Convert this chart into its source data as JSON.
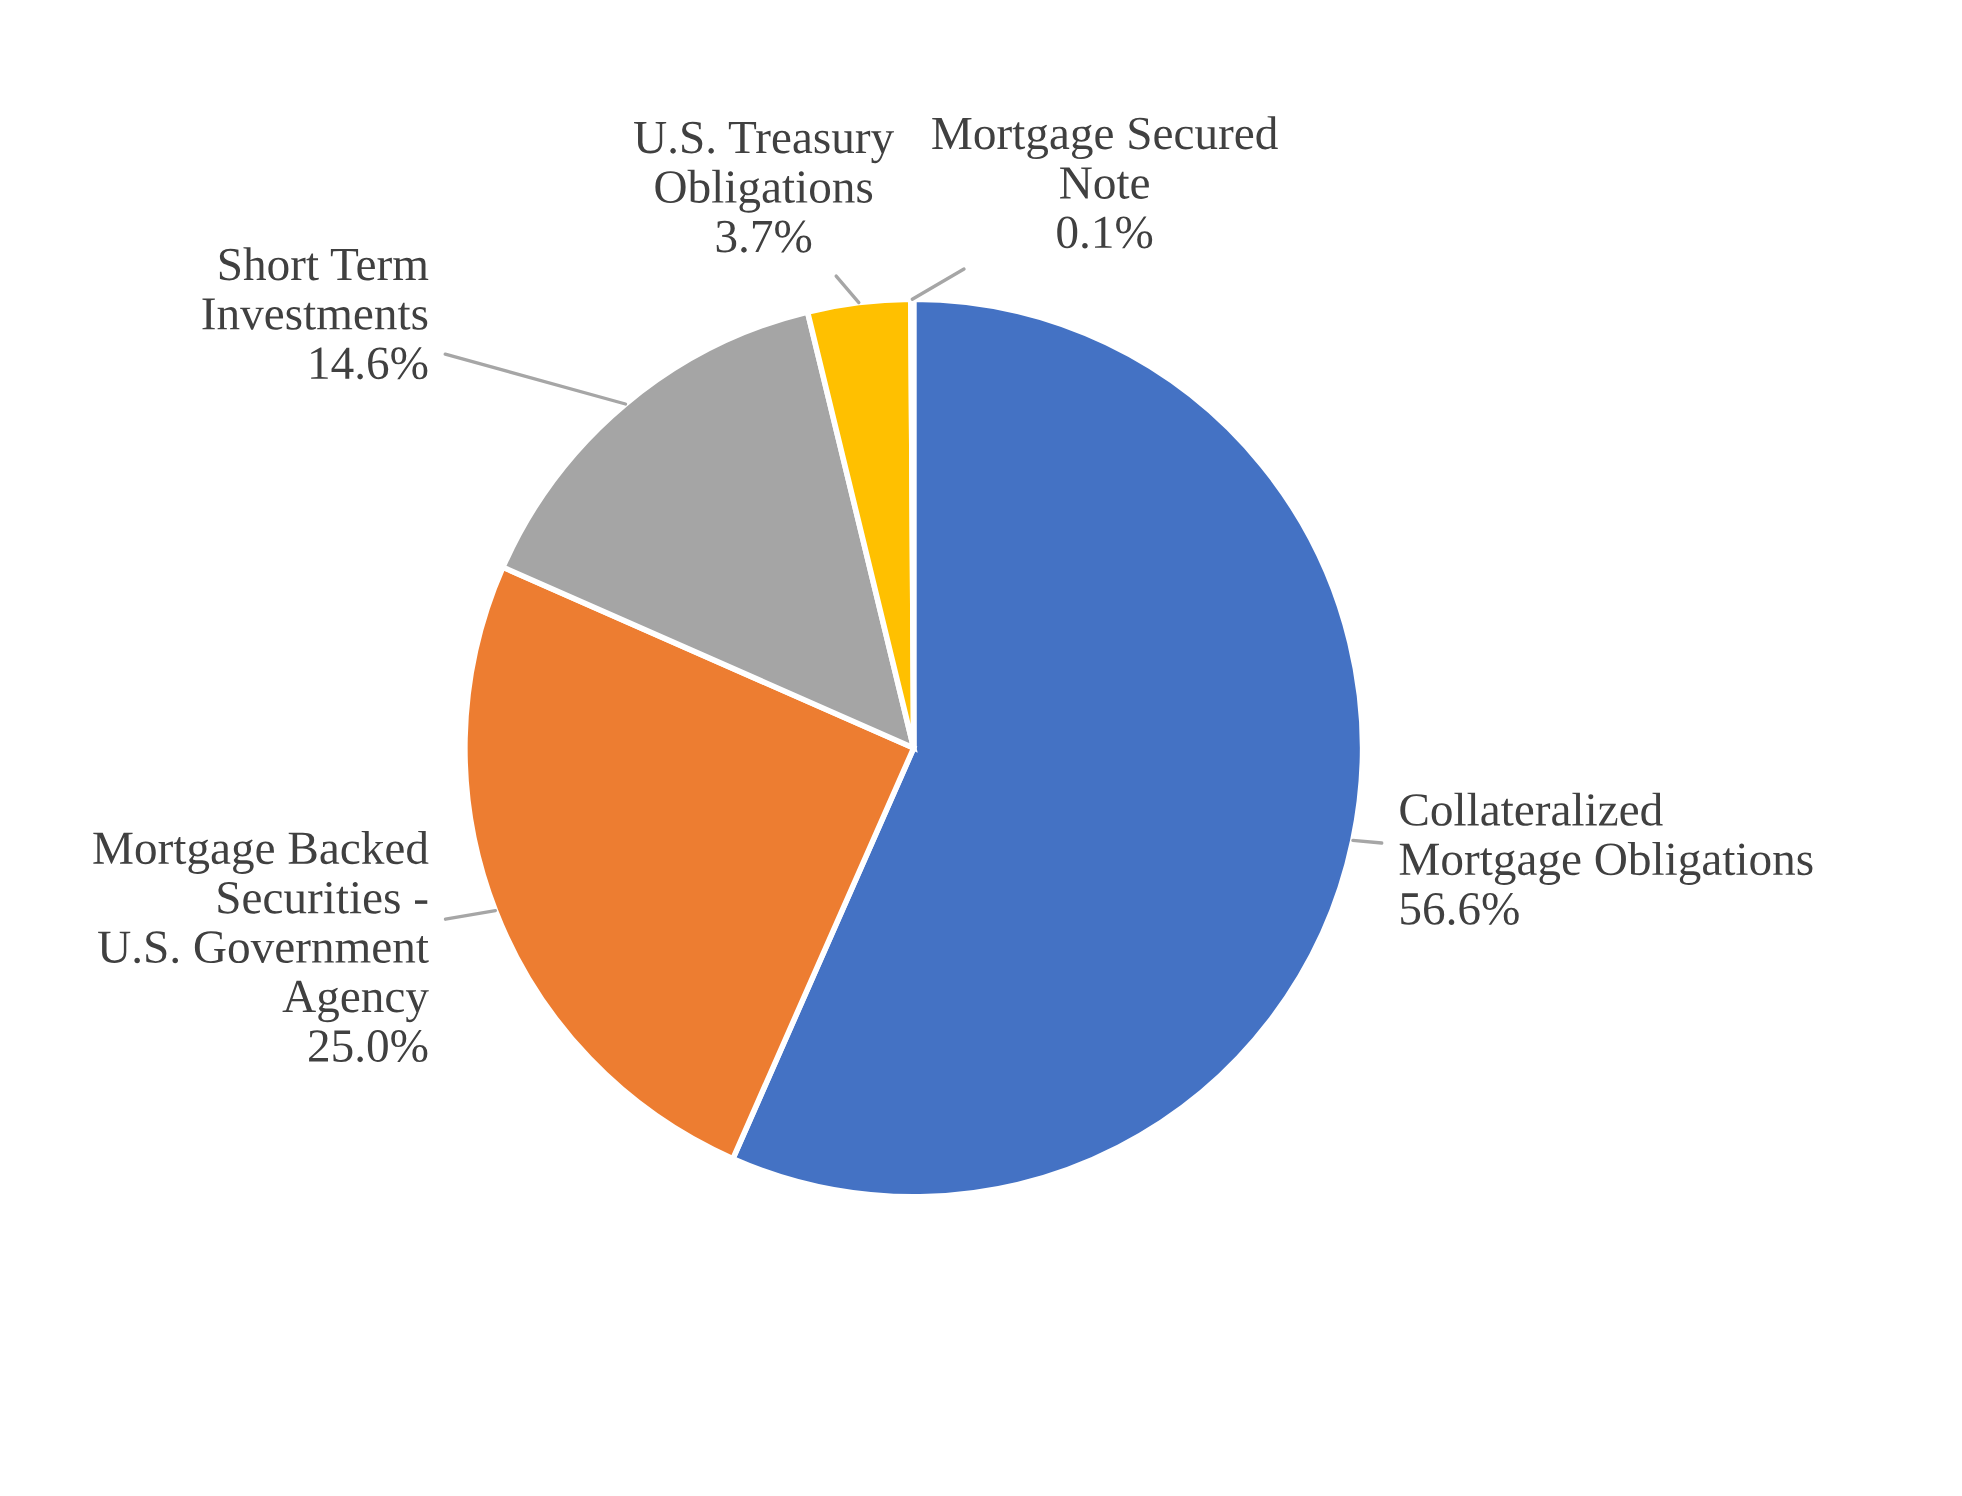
{
  "chart_data": {
    "type": "pie",
    "categories": [
      "Collateralized\nMortgage Obligations",
      "Mortgage Backed\nSecurities -\nU.S. Government\nAgency",
      "Short Term\nInvestments",
      "U.S. Treasury\nObligations",
      "Mortgage Secured\nNote"
    ],
    "values": [
      56.6,
      25.0,
      14.6,
      3.7,
      0.1
    ],
    "value_labels": [
      "56.6%",
      "25.0%",
      "14.6%",
      "3.7%",
      "0.1%"
    ],
    "colors": [
      "#4472c4",
      "#ed7d31",
      "#a5a5a5",
      "#ffc000",
      "#5b9bd5"
    ]
  }
}
